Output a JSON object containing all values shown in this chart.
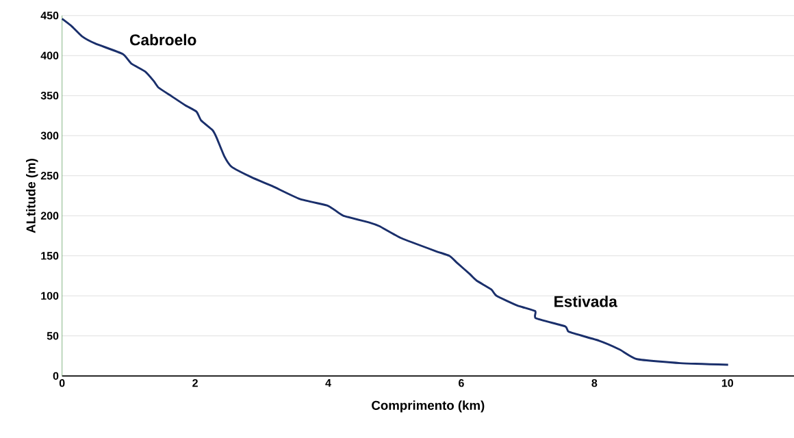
{
  "chart_data": {
    "type": "line",
    "xlabel": "Comprimento (km)",
    "ylabel": "ALtitude (m)",
    "x": [
      0,
      0.14,
      0.3,
      0.5,
      0.91,
      1.04,
      1.25,
      1.38,
      1.45,
      1.65,
      1.85,
      2.02,
      2.09,
      2.26,
      2.32,
      2.44,
      2.55,
      2.85,
      3.16,
      3.57,
      3.98,
      4.1,
      4.23,
      4.64,
      4.77,
      5.1,
      5.61,
      5.82,
      5.94,
      6.13,
      6.23,
      6.45,
      6.53,
      6.84,
      7.11,
      7.12,
      7.56,
      7.62,
      8.07,
      8.38,
      8.64,
      9.29,
      10.01
    ],
    "series": [
      {
        "color": "#1a2f6b",
        "values": [
          446,
          437,
          424,
          415,
          402,
          390,
          380,
          368,
          360,
          349,
          338,
          330,
          319,
          307,
          298,
          274,
          261,
          248,
          237,
          221,
          213,
          207,
          200,
          191,
          187,
          172,
          156,
          150,
          141,
          127,
          119,
          108,
          100,
          88,
          81,
          72,
          62,
          55,
          44,
          33,
          21,
          16,
          14
        ]
      }
    ],
    "xlim": [
      0,
      11
    ],
    "ylim": [
      0,
      450
    ],
    "xticks": [
      0,
      2,
      4,
      6,
      8,
      10
    ],
    "yticks": [
      0,
      50,
      100,
      150,
      200,
      250,
      300,
      350,
      400,
      450
    ],
    "grid": "y",
    "annotations": [
      "Cabroelo",
      "Estivada"
    ]
  }
}
